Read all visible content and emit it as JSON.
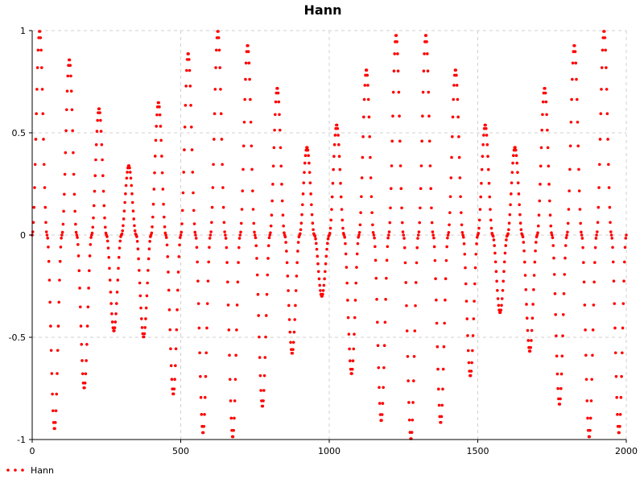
{
  "chart_data": {
    "type": "scatter",
    "title": "Hann",
    "xlabel": "",
    "ylabel": "",
    "xlim": [
      0,
      2000
    ],
    "ylim": [
      -1,
      1
    ],
    "x_ticks": [
      0,
      500,
      1000,
      1500,
      2000
    ],
    "y_ticks": [
      -1,
      -0.5,
      0,
      0.5,
      1
    ],
    "x_tick_labels": [
      "0",
      "500",
      "1000",
      "1500",
      "2000"
    ],
    "y_tick_labels": [
      "-1",
      "-0.5",
      "0",
      "0.5",
      "1"
    ],
    "grid": true,
    "legend_position": "bottom-left",
    "series": [
      {
        "name": "Hann",
        "color": "#ff0000",
        "marker": "dot",
        "x_start": 0,
        "x_end": 2000,
        "x_step": 2,
        "cycle_period": 50,
        "peaks": [
          {
            "x": 25,
            "y": 1.0
          },
          {
            "x": 75,
            "y": -0.95
          },
          {
            "x": 125,
            "y": 0.86
          },
          {
            "x": 175,
            "y": -0.75
          },
          {
            "x": 225,
            "y": 0.62
          },
          {
            "x": 275,
            "y": -0.47
          },
          {
            "x": 325,
            "y": 0.34
          },
          {
            "x": 375,
            "y": -0.5
          },
          {
            "x": 425,
            "y": 0.65
          },
          {
            "x": 475,
            "y": -0.78
          },
          {
            "x": 525,
            "y": 0.89
          },
          {
            "x": 575,
            "y": -0.97
          },
          {
            "x": 625,
            "y": 1.0
          },
          {
            "x": 675,
            "y": -0.99
          },
          {
            "x": 725,
            "y": 0.93
          },
          {
            "x": 775,
            "y": -0.84
          },
          {
            "x": 825,
            "y": 0.72
          },
          {
            "x": 875,
            "y": -0.58
          },
          {
            "x": 925,
            "y": 0.43
          },
          {
            "x": 975,
            "y": -0.3
          },
          {
            "x": 1025,
            "y": 0.54
          },
          {
            "x": 1075,
            "y": -0.68
          },
          {
            "x": 1125,
            "y": 0.81
          },
          {
            "x": 1175,
            "y": -0.91
          },
          {
            "x": 1225,
            "y": 0.98
          },
          {
            "x": 1275,
            "y": -1.0
          },
          {
            "x": 1325,
            "y": 0.98
          },
          {
            "x": 1375,
            "y": -0.92
          },
          {
            "x": 1425,
            "y": 0.81
          },
          {
            "x": 1475,
            "y": -0.69
          },
          {
            "x": 1525,
            "y": 0.54
          },
          {
            "x": 1575,
            "y": -0.38
          },
          {
            "x": 1625,
            "y": 0.43
          },
          {
            "x": 1675,
            "y": -0.57
          },
          {
            "x": 1725,
            "y": 0.72
          },
          {
            "x": 1775,
            "y": -0.83
          },
          {
            "x": 1825,
            "y": 0.93
          },
          {
            "x": 1875,
            "y": -0.99
          },
          {
            "x": 1925,
            "y": 1.0
          },
          {
            "x": 1975,
            "y": -0.97
          }
        ]
      }
    ]
  }
}
